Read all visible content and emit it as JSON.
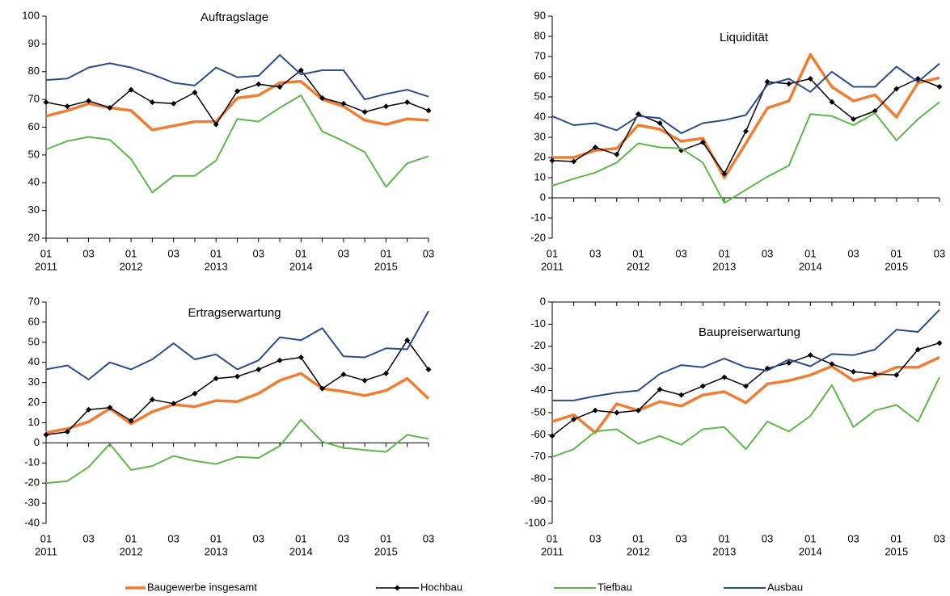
{
  "chart_data": [
    {
      "type": "line",
      "title": "Auftragslage",
      "categories": [
        "01",
        null,
        "03",
        null,
        "01",
        null,
        "03",
        null,
        "01",
        null,
        "03",
        null,
        "01",
        null,
        "03",
        null,
        "01",
        null,
        "03"
      ],
      "years": [
        "2011",
        null,
        null,
        null,
        "2012",
        null,
        null,
        null,
        "2013",
        null,
        null,
        null,
        "2014",
        null,
        null,
        null,
        "2015",
        null,
        null
      ],
      "ylim": [
        20,
        100
      ],
      "yticks": [
        20,
        30,
        40,
        50,
        60,
        70,
        80,
        90,
        100
      ],
      "series": [
        {
          "name": "Baugewerbe insgesamt",
          "color": "#f07d32",
          "values": [
            64,
            66,
            68.5,
            67,
            66,
            59,
            60.5,
            62,
            62,
            70.5,
            71.5,
            76,
            76.5,
            70,
            67.5,
            62.5,
            61,
            63,
            62.5
          ]
        },
        {
          "name": "Hochbau",
          "color": "#000000",
          "values": [
            69,
            67.5,
            69.5,
            67,
            73.5,
            69,
            68.5,
            72.5,
            61,
            73,
            75.5,
            74.5,
            80.5,
            70.5,
            68.5,
            65.5,
            67.5,
            69,
            66
          ]
        },
        {
          "name": "Tiefbau",
          "color": "#5cb847",
          "values": [
            52,
            55,
            56.5,
            55.5,
            48.5,
            36.5,
            42.5,
            42.5,
            48,
            63,
            62,
            67,
            71.5,
            58.5,
            55,
            51,
            38.5,
            47,
            49.5
          ]
        },
        {
          "name": "Ausbau",
          "color": "#2b4c8c",
          "values": [
            77,
            77.5,
            81.5,
            83,
            81.5,
            79,
            76,
            75,
            81.5,
            78,
            78.5,
            86,
            79,
            80.5,
            80.5,
            70,
            72,
            73.5,
            71
          ]
        }
      ]
    },
    {
      "type": "line",
      "title": "Liquidität",
      "categories": [
        "01",
        null,
        "03",
        null,
        "01",
        null,
        "03",
        null,
        "01",
        null,
        "03",
        null,
        "01",
        null,
        "03",
        null,
        "01",
        null,
        "03"
      ],
      "years": [
        "2011",
        null,
        null,
        null,
        "2012",
        null,
        null,
        null,
        "2013",
        null,
        null,
        null,
        "2014",
        null,
        null,
        null,
        "2015",
        null,
        null
      ],
      "ylim": [
        -20,
        90
      ],
      "yticks": [
        -20,
        -10,
        0,
        10,
        20,
        30,
        40,
        50,
        60,
        70,
        80,
        90
      ],
      "series": [
        {
          "color": "#f07d32",
          "values": [
            20,
            20,
            23.5,
            24.5,
            36,
            34,
            28,
            29.5,
            10,
            27,
            44.5,
            48,
            71,
            55,
            48,
            51,
            40,
            57,
            59.5
          ]
        },
        {
          "color": "#000000",
          "values": [
            18.5,
            18,
            25,
            21.5,
            41.5,
            37,
            23.5,
            27.5,
            12,
            33,
            57.5,
            56.5,
            59,
            47.5,
            39,
            43,
            54,
            59,
            55
          ]
        },
        {
          "color": "#5cb847",
          "values": [
            6,
            9.5,
            12.5,
            17.5,
            27,
            25,
            24.5,
            17.5,
            -2.5,
            4,
            10.5,
            16,
            41.5,
            40.5,
            36,
            42,
            28.5,
            39,
            47.5
          ]
        },
        {
          "color": "#2b4c8c",
          "values": [
            40.5,
            36,
            37,
            33.5,
            40.5,
            39.5,
            32,
            37,
            38.5,
            41,
            56,
            59,
            52.5,
            62.5,
            55,
            55,
            65,
            57.5,
            66.5
          ]
        }
      ]
    },
    {
      "type": "line",
      "title": "Ertragserwartung",
      "categories": [
        "01",
        null,
        "03",
        null,
        "01",
        null,
        "03",
        null,
        "01",
        null,
        "03",
        null,
        "01",
        null,
        "03",
        null,
        "01",
        null,
        "03"
      ],
      "years": [
        "2011",
        null,
        null,
        null,
        "2012",
        null,
        null,
        null,
        "2013",
        null,
        null,
        null,
        "2014",
        null,
        null,
        null,
        "2015",
        null,
        null
      ],
      "ylim": [
        -40,
        70
      ],
      "yticks": [
        -40,
        -30,
        -20,
        -10,
        0,
        10,
        20,
        30,
        40,
        50,
        60,
        70
      ],
      "series": [
        {
          "color": "#f07d32",
          "values": [
            5,
            7,
            10.5,
            17,
            9.5,
            15.5,
            19,
            18,
            21,
            20.5,
            24.5,
            31,
            34.5,
            27,
            25.5,
            23.5,
            26,
            32,
            22
          ]
        },
        {
          "color": "#000000",
          "values": [
            4,
            5.5,
            16.5,
            17.5,
            11,
            21.5,
            19.5,
            24.5,
            32,
            33,
            36.5,
            41,
            42.5,
            27,
            34,
            31,
            34.5,
            51,
            36.5
          ]
        },
        {
          "color": "#5cb847",
          "values": [
            -20,
            -19,
            -12,
            -0.5,
            -13.5,
            -11.5,
            -6.5,
            -9,
            -10.5,
            -7,
            -7.5,
            -1.5,
            11.5,
            0.5,
            -2.5,
            -3.5,
            -4.5,
            4,
            2
          ]
        },
        {
          "color": "#2b4c8c",
          "values": [
            36.5,
            38.5,
            31.5,
            40,
            36.5,
            41.5,
            49.5,
            41.5,
            44,
            36.5,
            41,
            52.5,
            51,
            57,
            43,
            42.5,
            47,
            46.5,
            65.5
          ]
        }
      ]
    },
    {
      "type": "line",
      "title": "Baupreiserwartung",
      "categories": [
        "01",
        null,
        "03",
        null,
        "01",
        null,
        "03",
        null,
        "01",
        null,
        "03",
        null,
        "01",
        null,
        "03",
        null,
        "01",
        null,
        "03"
      ],
      "years": [
        "2011",
        null,
        null,
        null,
        "2012",
        null,
        null,
        null,
        "2013",
        null,
        null,
        null,
        "2014",
        null,
        null,
        null,
        "2015",
        null,
        null
      ],
      "ylim": [
        -100,
        0
      ],
      "yticks": [
        -100,
        -90,
        -80,
        -70,
        -60,
        -50,
        -40,
        -30,
        -20,
        -10,
        0
      ],
      "series": [
        {
          "color": "#f07d32",
          "values": [
            -54,
            -51,
            -59,
            -46,
            -49,
            -45,
            -47,
            -42,
            -40.5,
            -45.5,
            -37,
            -35.5,
            -33,
            -29,
            -35.5,
            -33.5,
            -29.5,
            -29.5,
            -25
          ]
        },
        {
          "color": "#000000",
          "values": [
            -60.5,
            -53,
            -49,
            -50,
            -49,
            -39.5,
            -42,
            -38,
            -34,
            -38,
            -30,
            -27.5,
            -24,
            -28,
            -31.5,
            -32.5,
            -33,
            -21.5,
            -18.5
          ]
        },
        {
          "color": "#5cb847",
          "values": [
            -70,
            -66.5,
            -58.5,
            -57.5,
            -64,
            -60.5,
            -64.5,
            -57.5,
            -56.5,
            -66.5,
            -54,
            -58.5,
            -51.5,
            -37.5,
            -56.5,
            -49,
            -46.5,
            -54,
            -34
          ]
        },
        {
          "color": "#2b4c8c",
          "values": [
            -44.5,
            -44.5,
            -42.5,
            -41,
            -40,
            -32.5,
            -28.5,
            -29.5,
            -25.5,
            -29.5,
            -31,
            -26,
            -29,
            -23.5,
            -24,
            -21.5,
            -12.5,
            -13.5,
            -3.5
          ]
        }
      ]
    }
  ]
}
